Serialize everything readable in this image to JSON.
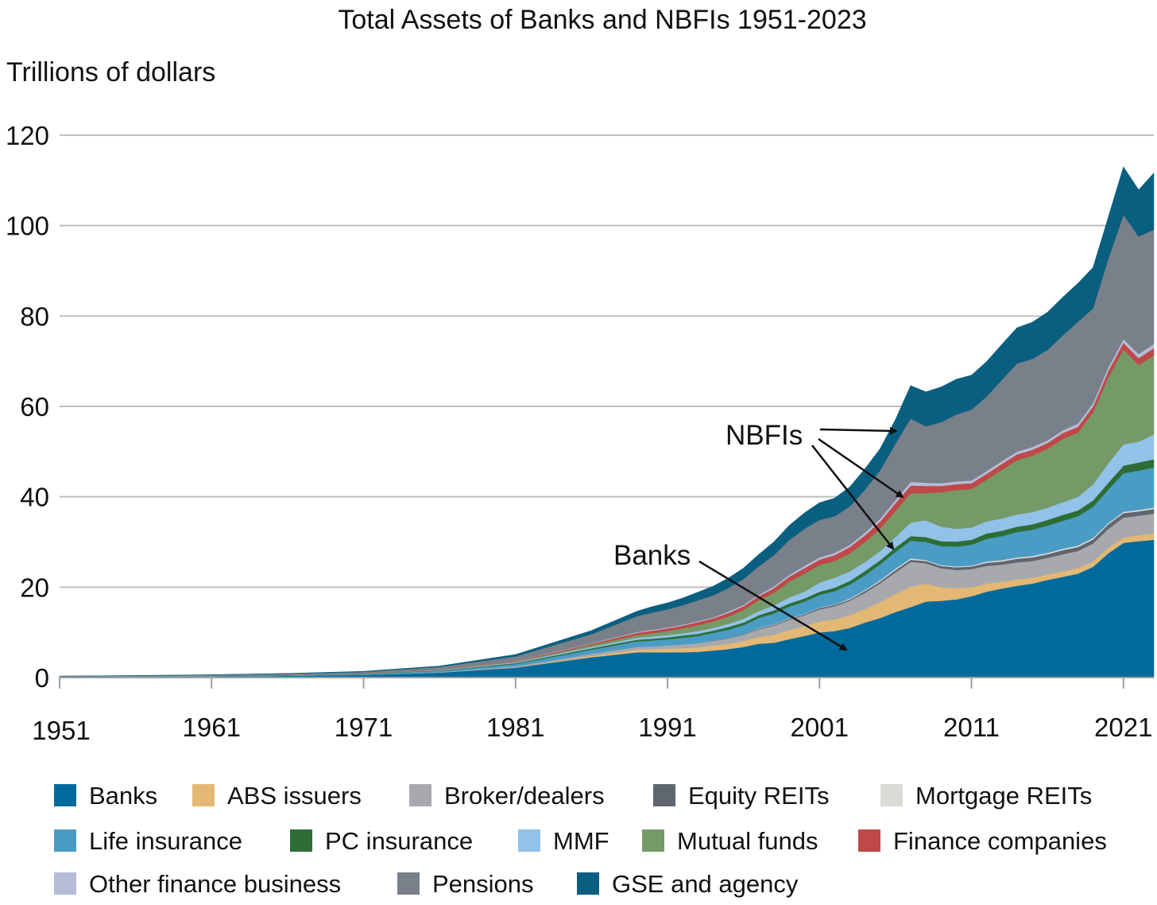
{
  "chart_data": {
    "type": "area",
    "stacked": true,
    "title": "Total Assets of Banks and NBFIs 1951-2023",
    "ylabel": "Trillions of dollars",
    "xlabel": "",
    "ylim": [
      0,
      120
    ],
    "y_ticks": [
      0,
      20,
      40,
      60,
      80,
      100,
      120
    ],
    "x_ticks": [
      1951,
      1961,
      1971,
      1981,
      1991,
      2001,
      2011,
      2021
    ],
    "xlim": [
      1951,
      2023
    ],
    "grid": true,
    "legend_position": "bottom",
    "x": [
      1951,
      1956,
      1961,
      1966,
      1971,
      1976,
      1981,
      1986,
      1989,
      1990,
      1991,
      1992,
      1993,
      1994,
      1995,
      1996,
      1997,
      1998,
      1999,
      2000,
      2001,
      2002,
      2003,
      2004,
      2005,
      2006,
      2007,
      2008,
      2009,
      2010,
      2011,
      2012,
      2013,
      2014,
      2015,
      2016,
      2017,
      2018,
      2019,
      2020,
      2021,
      2022,
      2023
    ],
    "series": [
      {
        "name": "Banks",
        "color": "#006a9c",
        "values": [
          0.2,
          0.25,
          0.3,
          0.4,
          0.6,
          1.1,
          2.2,
          4.5,
          5.6,
          5.6,
          5.6,
          5.6,
          5.7,
          6.0,
          6.3,
          6.8,
          7.5,
          7.7,
          8.5,
          9.2,
          10.0,
          10.3,
          11.0,
          12.2,
          13.2,
          14.5,
          15.6,
          16.8,
          17.0,
          17.3,
          18.0,
          19.0,
          19.7,
          20.3,
          20.8,
          21.6,
          22.3,
          23.0,
          24.5,
          27.5,
          29.8,
          30.2,
          30.5
        ]
      },
      {
        "name": "ABS issuers",
        "color": "#e3b874",
        "values": [
          0,
          0,
          0,
          0,
          0,
          0,
          0,
          0.3,
          0.6,
          0.7,
          0.8,
          0.9,
          1.0,
          1.1,
          1.2,
          1.3,
          1.5,
          1.8,
          2.0,
          2.2,
          2.4,
          2.6,
          2.8,
          3.0,
          3.5,
          4.0,
          4.5,
          4.0,
          3.0,
          2.5,
          2.0,
          1.8,
          1.5,
          1.4,
          1.3,
          1.2,
          1.2,
          1.2,
          1.2,
          1.2,
          1.2,
          1.3,
          1.4
        ]
      },
      {
        "name": "Broker/dealers",
        "color": "#a7a9ad",
        "values": [
          0,
          0,
          0,
          0,
          0,
          0.1,
          0.3,
          0.5,
          0.6,
          0.6,
          0.7,
          0.8,
          0.9,
          1.0,
          1.2,
          1.4,
          1.7,
          2.0,
          2.3,
          2.4,
          2.7,
          2.9,
          3.2,
          3.6,
          4.2,
          4.8,
          5.5,
          4.5,
          4.2,
          4.0,
          4.0,
          3.9,
          3.8,
          3.8,
          3.7,
          3.7,
          3.8,
          3.8,
          4.0,
          4.2,
          4.4,
          4.3,
          4.4
        ]
      },
      {
        "name": "Equity REITs",
        "color": "#5f6670",
        "values": [
          0,
          0,
          0,
          0,
          0,
          0,
          0,
          0,
          0,
          0,
          0,
          0,
          0,
          0.1,
          0.1,
          0.1,
          0.2,
          0.2,
          0.2,
          0.2,
          0.3,
          0.3,
          0.3,
          0.4,
          0.4,
          0.5,
          0.5,
          0.5,
          0.5,
          0.6,
          0.6,
          0.7,
          0.7,
          0.8,
          0.8,
          0.8,
          0.9,
          0.9,
          0.9,
          1.0,
          1.0,
          1.0,
          1.0
        ]
      },
      {
        "name": "Mortgage REITs",
        "color": "#dcdad6",
        "values": [
          0,
          0,
          0,
          0,
          0,
          0,
          0,
          0,
          0,
          0,
          0,
          0,
          0,
          0,
          0,
          0,
          0.1,
          0.1,
          0.1,
          0.1,
          0.1,
          0.1,
          0.2,
          0.2,
          0.3,
          0.3,
          0.3,
          0.2,
          0.2,
          0.2,
          0.2,
          0.3,
          0.3,
          0.3,
          0.3,
          0.3,
          0.3,
          0.3,
          0.3,
          0.3,
          0.3,
          0.3,
          0.3
        ]
      },
      {
        "name": "Life insurance",
        "color": "#4a9cc5",
        "values": [
          0.06,
          0.09,
          0.12,
          0.15,
          0.2,
          0.3,
          0.5,
          0.9,
          1.2,
          1.3,
          1.4,
          1.5,
          1.6,
          1.7,
          1.8,
          2.0,
          2.2,
          2.4,
          2.6,
          2.7,
          2.8,
          2.9,
          3.1,
          3.3,
          3.5,
          3.7,
          3.9,
          4.0,
          4.2,
          4.4,
          4.6,
          5.0,
          5.3,
          5.6,
          5.8,
          6.0,
          6.2,
          6.5,
          6.9,
          7.4,
          8.5,
          8.7,
          8.9
        ]
      },
      {
        "name": "PC insurance",
        "color": "#2d6e36",
        "values": [
          0.01,
          0.02,
          0.03,
          0.04,
          0.06,
          0.1,
          0.2,
          0.3,
          0.4,
          0.4,
          0.4,
          0.5,
          0.5,
          0.5,
          0.6,
          0.6,
          0.6,
          0.7,
          0.7,
          0.7,
          0.7,
          0.8,
          0.8,
          0.9,
          0.9,
          1.0,
          1.0,
          1.1,
          1.1,
          1.1,
          1.1,
          1.2,
          1.2,
          1.2,
          1.2,
          1.3,
          1.3,
          1.3,
          1.4,
          1.5,
          1.7,
          1.8,
          1.8
        ]
      },
      {
        "name": "MMF",
        "color": "#92c2e8",
        "values": [
          0,
          0,
          0,
          0,
          0,
          0.1,
          0.2,
          0.3,
          0.4,
          0.5,
          0.5,
          0.5,
          0.6,
          0.6,
          0.7,
          0.8,
          0.9,
          1.1,
          1.3,
          1.5,
          2.0,
          2.2,
          2.1,
          2.0,
          2.0,
          2.3,
          3.0,
          3.7,
          3.2,
          2.8,
          2.7,
          2.7,
          2.7,
          2.7,
          2.7,
          2.7,
          2.8,
          3.0,
          3.5,
          4.3,
          4.7,
          4.6,
          5.5
        ]
      },
      {
        "name": "Mutual funds",
        "color": "#759a68",
        "values": [
          0,
          0,
          0.02,
          0.04,
          0.06,
          0.08,
          0.1,
          0.4,
          0.6,
          0.7,
          0.9,
          1.1,
          1.3,
          1.4,
          1.6,
          2.0,
          2.4,
          2.8,
          3.5,
          4.0,
          3.9,
          3.7,
          4.0,
          4.4,
          5.0,
          5.8,
          6.5,
          6.0,
          7.6,
          8.6,
          8.5,
          9.2,
          10.8,
          12.0,
          12.5,
          13.0,
          14.0,
          14.2,
          16.0,
          19.0,
          21.0,
          17.0,
          17.5
        ]
      },
      {
        "name": "Finance companies",
        "color": "#c04848",
        "values": [
          0.01,
          0.02,
          0.03,
          0.04,
          0.05,
          0.08,
          0.15,
          0.3,
          0.5,
          0.6,
          0.6,
          0.6,
          0.7,
          0.7,
          0.8,
          0.8,
          0.9,
          1.0,
          1.1,
          1.2,
          1.2,
          1.3,
          1.4,
          1.5,
          1.6,
          1.7,
          1.7,
          1.6,
          1.4,
          1.3,
          1.3,
          1.3,
          1.3,
          1.3,
          1.3,
          1.3,
          1.3,
          1.3,
          1.3,
          1.4,
          1.5,
          1.5,
          1.6
        ]
      },
      {
        "name": "Other finance business",
        "color": "#b4bcd8",
        "values": [
          0,
          0,
          0,
          0,
          0,
          0,
          0.05,
          0.1,
          0.2,
          0.2,
          0.2,
          0.2,
          0.2,
          0.2,
          0.3,
          0.3,
          0.3,
          0.4,
          0.4,
          0.5,
          0.5,
          0.5,
          0.5,
          0.6,
          0.6,
          0.7,
          0.8,
          0.7,
          0.6,
          0.6,
          0.6,
          0.6,
          0.6,
          0.6,
          0.6,
          0.6,
          0.6,
          0.7,
          0.7,
          0.8,
          0.8,
          0.9,
          0.9
        ]
      },
      {
        "name": "Pensions",
        "color": "#7a8089",
        "values": [
          0.03,
          0.05,
          0.1,
          0.2,
          0.3,
          0.5,
          1.0,
          2.0,
          3.5,
          3.8,
          4.0,
          4.3,
          4.6,
          4.9,
          5.2,
          5.7,
          6.3,
          6.9,
          7.7,
          8.2,
          8.3,
          8.1,
          8.5,
          9.5,
          10.7,
          12.5,
          14.0,
          12.5,
          13.5,
          14.8,
          15.7,
          16.5,
          18.0,
          19.5,
          19.5,
          20.0,
          21.0,
          22.5,
          21.0,
          24.0,
          27.5,
          26.0,
          25.3
        ]
      },
      {
        "name": "GSE and agency",
        "color": "#0a5f80",
        "values": [
          0.01,
          0.02,
          0.03,
          0.05,
          0.1,
          0.2,
          0.4,
          0.8,
          1.1,
          1.3,
          1.4,
          1.6,
          1.8,
          2.0,
          2.2,
          2.4,
          2.6,
          2.9,
          3.2,
          3.5,
          3.8,
          4.0,
          4.3,
          4.6,
          4.8,
          5.3,
          7.3,
          7.6,
          7.8,
          7.8,
          7.6,
          7.7,
          7.8,
          7.9,
          8.1,
          8.3,
          8.4,
          8.5,
          9.0,
          9.2,
          10.6,
          10.3,
          12.5
        ]
      }
    ],
    "annotations": [
      {
        "text": "NBFIs"
      },
      {
        "text": "Banks"
      }
    ]
  }
}
